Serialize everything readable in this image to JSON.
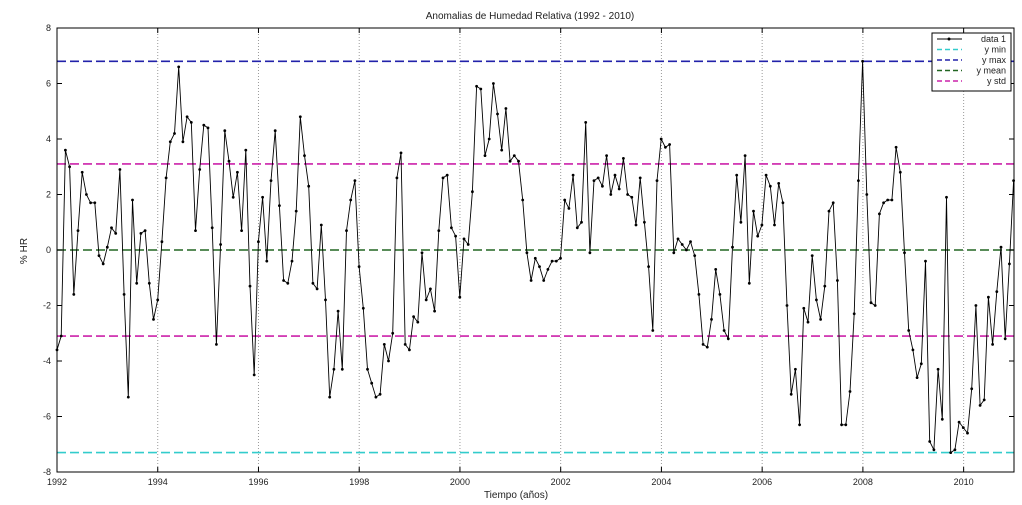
{
  "chart_data": {
    "type": "line",
    "title": "Anomalias de Humedad Relativa (1992 - 2010)",
    "xlabel": "Tiempo (años)",
    "ylabel": "% HR",
    "xlim": [
      1992,
      2011
    ],
    "ylim": [
      -8,
      8
    ],
    "x_ticks": [
      1992,
      1994,
      1996,
      1998,
      2000,
      2002,
      2004,
      2006,
      2008,
      2010
    ],
    "y_ticks": [
      -8,
      -6,
      -4,
      -2,
      0,
      2,
      4,
      6,
      8
    ],
    "grid": "vertical-dotted",
    "legend_placement": "top-right",
    "series": [
      {
        "name": "data 1",
        "color": "#000000",
        "marker": "dot",
        "x_start": 1992.0,
        "x_step": 0.0833,
        "values": [
          -3.6,
          -3.1,
          3.6,
          3.0,
          -1.6,
          0.7,
          2.8,
          2.0,
          1.7,
          1.7,
          -0.2,
          -0.5,
          0.1,
          0.8,
          0.6,
          2.9,
          -1.6,
          -5.3,
          1.8,
          -1.2,
          0.6,
          0.7,
          -1.2,
          -2.5,
          -1.8,
          0.3,
          2.6,
          3.9,
          4.2,
          6.6,
          3.9,
          4.8,
          4.6,
          0.7,
          2.9,
          4.5,
          4.4,
          0.8,
          -3.4,
          0.2,
          4.3,
          3.2,
          1.9,
          2.8,
          0.7,
          3.6,
          -1.3,
          -4.5,
          0.3,
          1.9,
          -0.4,
          2.5,
          4.3,
          1.6,
          -1.1,
          -1.2,
          -0.4,
          1.4,
          4.8,
          3.4,
          2.3,
          -1.2,
          -1.4,
          0.9,
          -1.8,
          -5.3,
          -4.3,
          -2.2,
          -4.3,
          0.7,
          1.8,
          2.5,
          -0.6,
          -2.1,
          -4.3,
          -4.8,
          -5.3,
          -5.2,
          -3.4,
          -4.0,
          -3.0,
          2.6,
          3.5,
          -3.4,
          -3.6,
          -2.4,
          -2.6,
          -0.1,
          -1.8,
          -1.4,
          -2.2,
          0.7,
          2.6,
          2.7,
          0.8,
          0.5,
          -1.7,
          0.4,
          0.2,
          2.1,
          5.9,
          5.8,
          3.4,
          4.0,
          6.0,
          4.9,
          3.6,
          5.1,
          3.2,
          3.4,
          3.2,
          1.8,
          -0.1,
          -1.1,
          -0.3,
          -0.6,
          -1.1,
          -0.7,
          -0.4,
          -0.4,
          -0.3,
          1.8,
          1.5,
          2.7,
          0.8,
          1.0,
          4.6,
          -0.1,
          2.5,
          2.6,
          2.3,
          3.4,
          2.0,
          2.7,
          2.2,
          3.3,
          2.0,
          1.9,
          0.9,
          2.6,
          1.0,
          -0.6,
          -2.9,
          2.5,
          4.0,
          3.7,
          3.8,
          -0.1,
          0.4,
          0.2,
          0.0,
          0.3,
          -0.2,
          -1.6,
          -3.4,
          -3.5,
          -2.5,
          -0.7,
          -1.6,
          -2.9,
          -3.2,
          0.1,
          2.7,
          1.0,
          3.4,
          -1.2,
          1.4,
          0.5,
          0.9,
          2.7,
          2.3,
          0.9,
          2.4,
          1.7,
          -2.0,
          -5.2,
          -4.3,
          -6.3,
          -2.1,
          -2.6,
          -0.2,
          -1.8,
          -2.5,
          -1.3,
          1.4,
          1.7,
          -1.1,
          -6.3,
          -6.3,
          -5.1,
          -2.3,
          2.5,
          6.8,
          2.0,
          -1.9,
          -2.0,
          1.3,
          1.7,
          1.8,
          1.8,
          3.7,
          2.8,
          -0.1,
          -2.9,
          -3.6,
          -4.6,
          -4.1,
          -0.4,
          -6.9,
          -7.2,
          -4.3,
          -6.1,
          1.9,
          -7.3,
          -7.2,
          -6.2,
          -6.4,
          -6.6,
          -5.0,
          -2.0,
          -5.6,
          -5.4,
          -1.7,
          -3.4,
          -1.5,
          0.1,
          -3.2,
          -0.5,
          2.5
        ]
      },
      {
        "name": "y min",
        "color": "#33cccc",
        "dashed": true,
        "value": -7.3
      },
      {
        "name": "y max",
        "color": "#2222aa",
        "dashed": true,
        "value": 6.8
      },
      {
        "name": "y mean",
        "color": "#226622",
        "dashed": true,
        "value": 0.0
      },
      {
        "name": "y std",
        "color": "#cc22aa",
        "dashed": true,
        "values": [
          3.1,
          -3.1
        ]
      }
    ]
  }
}
